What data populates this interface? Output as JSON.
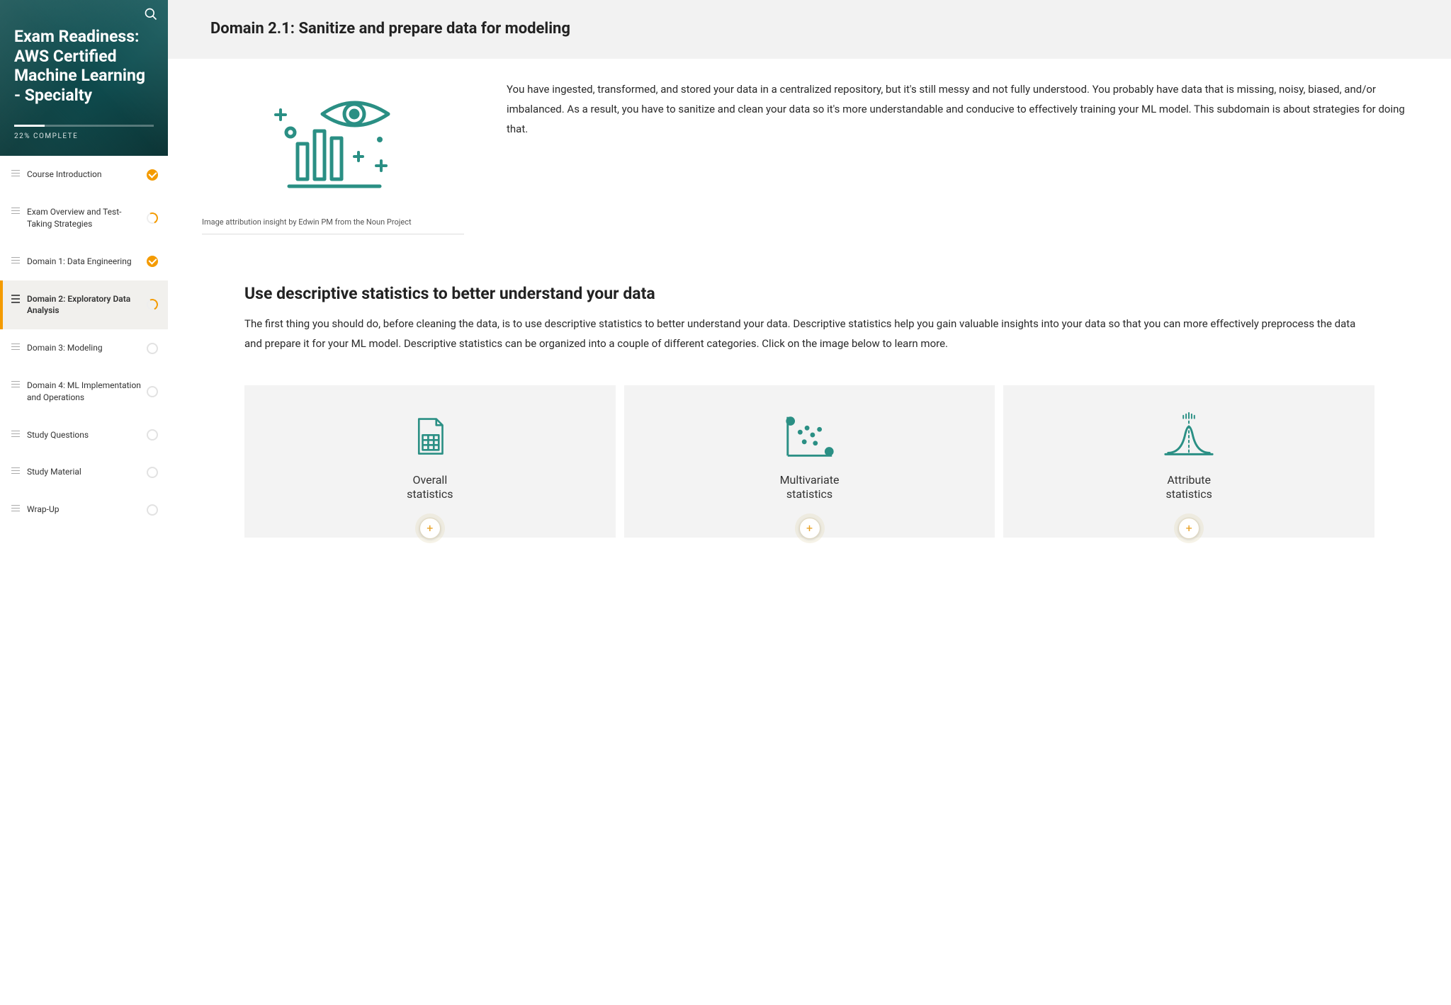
{
  "sidebar": {
    "course_title": "Exam Readiness: AWS Certified Machine Learning - Specialty",
    "progress_percent": 22,
    "progress_label": "22% COMPLETE",
    "items": [
      {
        "label": "Course Introduction",
        "status": "complete",
        "active": false
      },
      {
        "label": "Exam Overview and Test-Taking Strategies",
        "status": "partial",
        "active": false
      },
      {
        "label": "Domain 1: Data Engineering",
        "status": "complete",
        "active": false
      },
      {
        "label": "Domain 2: Exploratory Data Analysis",
        "status": "partial",
        "active": true
      },
      {
        "label": "Domain 3: Modeling",
        "status": "empty",
        "active": false
      },
      {
        "label": "Domain 4: ML Implementation and Operations",
        "status": "empty",
        "active": false
      },
      {
        "label": "Study Questions",
        "status": "empty",
        "active": false
      },
      {
        "label": "Study Material",
        "status": "empty",
        "active": false
      },
      {
        "label": "Wrap-Up",
        "status": "empty",
        "active": false
      }
    ]
  },
  "page": {
    "title": "Domain 2.1: Sanitize and prepare data for modeling",
    "figure_caption": "Image attribution insight by Edwin PM from the Noun Project",
    "intro_text": "You have ingested, transformed, and stored your data in a centralized repository, but it's still messy and not fully understood. You probably have data that is missing, noisy, biased, and/or imbalanced. As a result, you have to sanitize and clean your data so it's more understandable and conducive to effectively training your ML model. This subdomain is about strategies for doing that."
  },
  "section": {
    "heading": "Use descriptive statistics to better understand your data",
    "body": "The first thing you should do, before cleaning the data, is to use descriptive statistics to better understand your data. Descriptive statistics help you gain valuable insights into your data so that you can more effectively preprocess the data and prepare it for your ML model. Descriptive statistics can be organized into a couple of different categories. Click on the image below to learn more.",
    "cards": [
      {
        "label_line1": "Overall",
        "label_line2": "statistics"
      },
      {
        "label_line1": "Multivariate",
        "label_line2": "statistics"
      },
      {
        "label_line1": "Attribute",
        "label_line2": "statistics"
      }
    ]
  },
  "colors": {
    "accent_teal": "#2a8f84",
    "accent_orange": "#f49b00",
    "sidebar_bg": "#0d4b4e",
    "card_bg": "#f3f3f3",
    "header_bg": "#f2f2f2"
  }
}
